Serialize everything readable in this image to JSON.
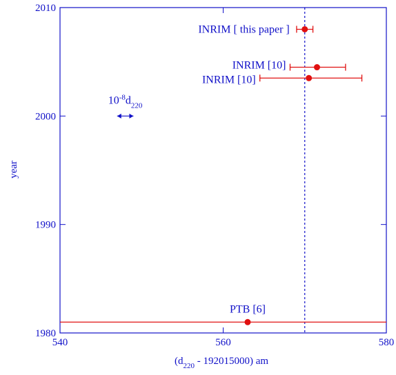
{
  "chart_data": {
    "type": "scatter",
    "xlabel_main": "(d",
    "xlabel_sub": "220",
    "xlabel_rest": " - 192015000) am",
    "ylabel": "year",
    "xlim": [
      540,
      580
    ],
    "ylim": [
      1980,
      2010
    ],
    "xticks": [
      "540",
      "560",
      "580"
    ],
    "yticks": [
      "1980",
      "1990",
      "2000",
      "2010"
    ],
    "colors": {
      "axes": "#1010c8",
      "data": "#e01010",
      "reference": "#1010c8"
    },
    "reference_line": {
      "x": 570,
      "style": "dashed"
    },
    "points": [
      {
        "label": "INRIM [ this paper ]",
        "x": 570,
        "y": 2008,
        "xerr_low": 569,
        "xerr_high": 571
      },
      {
        "label": "INRIM [10]",
        "x": 571.5,
        "y": 2004.5,
        "xerr_low": 568.2,
        "xerr_high": 575
      },
      {
        "label": "INRIM [10]",
        "x": 570.5,
        "y": 2003.5,
        "xerr_low": 564.5,
        "xerr_high": 577
      },
      {
        "label": "PTB [6]",
        "x": 563,
        "y": 1981,
        "xerr_low": 540,
        "xerr_high": 580
      }
    ],
    "scale_annotation": {
      "prefix": "10",
      "exp": "-8",
      "main": "d",
      "sub": "220",
      "x_center": 548,
      "y": 2000,
      "half_width": 1
    }
  }
}
